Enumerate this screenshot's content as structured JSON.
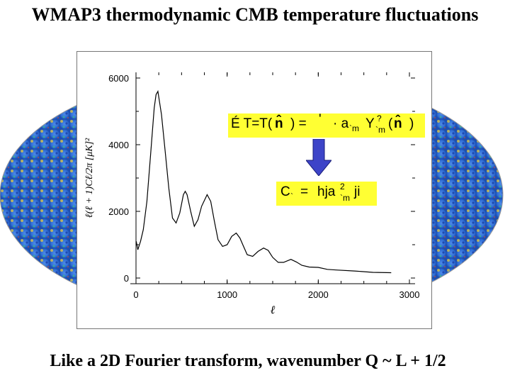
{
  "slide": {
    "title": "WMAP3 thermodynamic CMB temperature fluctuations",
    "caption": "Like a 2D Fourier transform, wavenumber Q ~ L + 1/2"
  },
  "colors": {
    "sky_background": "#2f6fd6",
    "sky_warm": "#f2d23a",
    "sky_cool": "#1c3fa6",
    "formula_highlight": "#ffff33",
    "arrow": "#3d44c8",
    "curve": "#000000"
  },
  "formulas": {
    "expansion": {
      "part1": "É T=T(",
      "hat1": "n̂",
      "part2": ") =",
      "mid1": "'",
      "mid2": "· a",
      "sub1": "`m",
      "part3": "Y",
      "sup2": "?",
      "sub2": "`m",
      "part4": "(",
      "hat2": "n̂",
      "part5": ")"
    },
    "power": {
      "part1": "C",
      "sub1": "`",
      "part2": "=",
      "part3": "hja",
      "sup": "2",
      "sub2": "`m",
      "part4": "ji"
    }
  },
  "chart_data": {
    "type": "line",
    "xlabel": "ℓ",
    "ylabel": "ℓ(ℓ + 1)Cℓ/2π  [μK]²",
    "xlim": [
      0,
      3000
    ],
    "ylim": [
      0,
      6000
    ],
    "x_ticks": [
      "0",
      "1000",
      "2000",
      "3000"
    ],
    "y_ticks": [
      "0",
      "2000",
      "4000",
      "6000"
    ],
    "grid": false,
    "x": [
      2,
      20,
      50,
      80,
      120,
      160,
      200,
      220,
      240,
      280,
      320,
      360,
      400,
      440,
      480,
      520,
      540,
      560,
      600,
      640,
      680,
      720,
      780,
      820,
      860,
      900,
      950,
      1000,
      1050,
      1100,
      1140,
      1180,
      1220,
      1280,
      1340,
      1400,
      1450,
      1500,
      1560,
      1620,
      1700,
      1760,
      1820,
      1900,
      2000,
      2100,
      2200,
      2400,
      2600,
      2800
    ],
    "y": [
      1100,
      850,
      1100,
      1450,
      2300,
      3700,
      5100,
      5500,
      5600,
      4900,
      3800,
      2700,
      1800,
      1650,
      1950,
      2500,
      2600,
      2500,
      2000,
      1550,
      1750,
      2150,
      2500,
      2300,
      1700,
      1150,
      950,
      1000,
      1250,
      1350,
      1200,
      950,
      700,
      650,
      800,
      900,
      830,
      620,
      470,
      470,
      560,
      480,
      380,
      330,
      320,
      260,
      240,
      210,
      170,
      160
    ]
  }
}
